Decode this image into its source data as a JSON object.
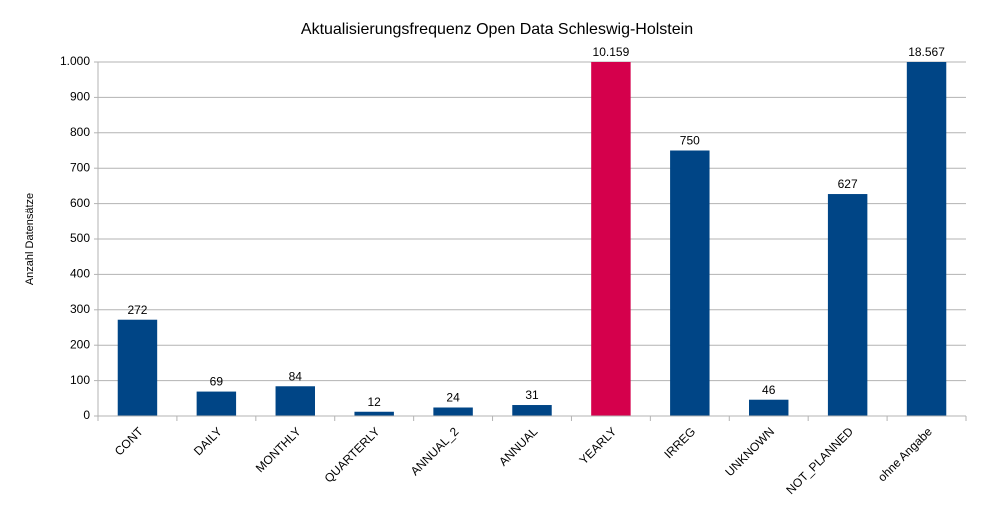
{
  "chart_data": {
    "type": "bar",
    "title": "Aktualisierungsfrequenz Open Data Schleswig-Holstein",
    "y_label": "Anzahl Datensätze",
    "categories": [
      "CONT",
      "DAILY",
      "MONTHLY",
      "QUARTERLY",
      "ANNUAL_2",
      "ANNUAL",
      "YEARLY",
      "IRREG",
      "UNKNOWN",
      "NOT_PLANNED",
      "ohne Angabe"
    ],
    "values": [
      272,
      69,
      84,
      12,
      24,
      31,
      10159,
      750,
      46,
      627,
      18567
    ],
    "value_labels": [
      "272",
      "69",
      "84",
      "12",
      "24",
      "31",
      "10.159",
      "750",
      "46",
      "627",
      "18.567"
    ],
    "colors": [
      "#004586",
      "#004586",
      "#004586",
      "#004586",
      "#004586",
      "#004586",
      "#d5004c",
      "#004586",
      "#004586",
      "#004586",
      "#004586"
    ],
    "ylim": [
      0,
      1000
    ],
    "yticks": [
      0,
      100,
      200,
      300,
      400,
      500,
      600,
      700,
      800,
      900,
      {
        "value": 1000,
        "label": "1.000"
      }
    ],
    "grid": true
  }
}
